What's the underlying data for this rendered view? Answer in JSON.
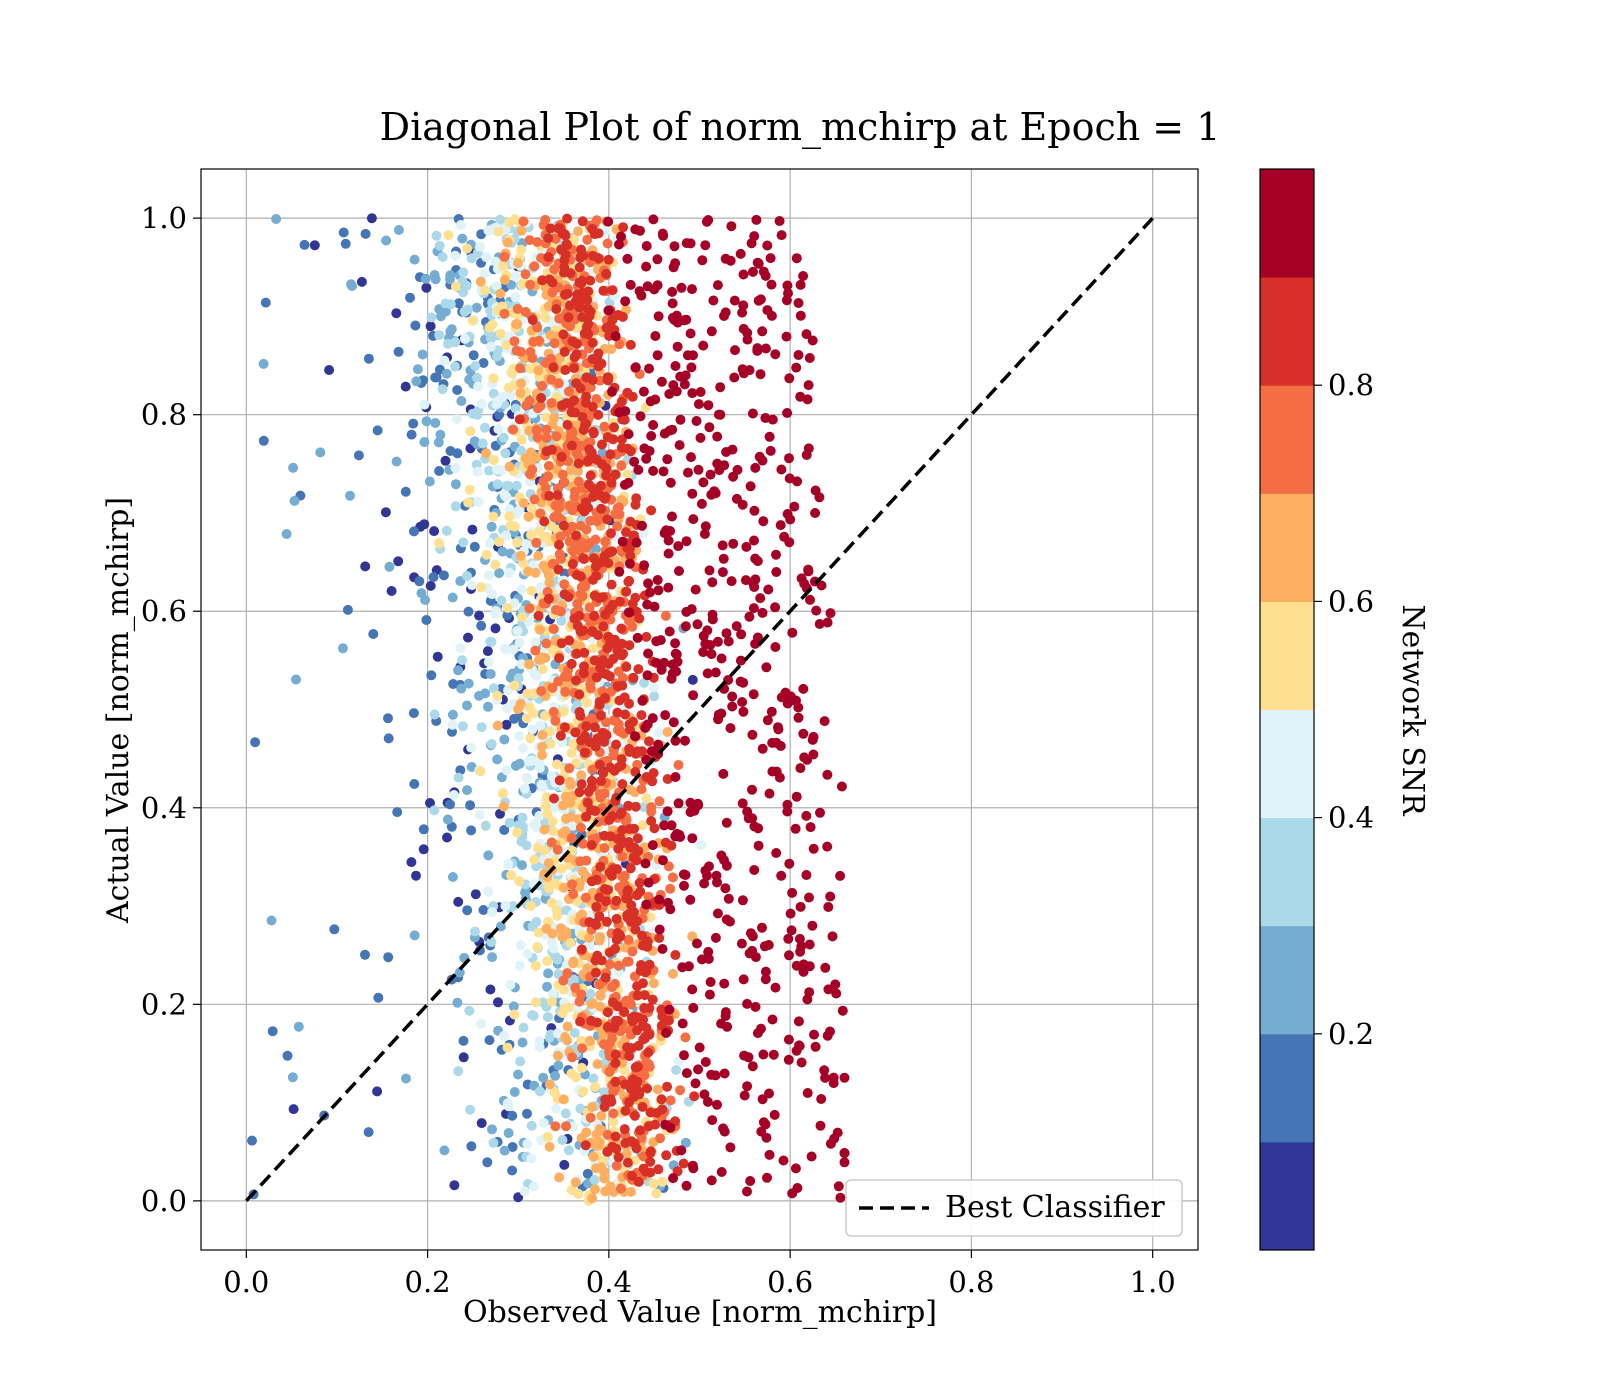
{
  "chart_data": {
    "type": "scatter",
    "title": "Diagonal Plot of norm_mchirp at Epoch = 1",
    "xlabel": "Observed Value [norm_mchirp]",
    "ylabel": "Actual Value [norm_mchirp]",
    "xlim": [
      -0.05,
      1.05
    ],
    "ylim": [
      -0.05,
      1.05
    ],
    "xticks": [
      "0.0",
      "0.2",
      "0.4",
      "0.6",
      "0.8",
      "1.0"
    ],
    "yticks": [
      "0.0",
      "0.2",
      "0.4",
      "0.6",
      "0.8",
      "1.0"
    ],
    "xtick_values": [
      0.0,
      0.2,
      0.4,
      0.6,
      0.8,
      1.0
    ],
    "ytick_values": [
      0.0,
      0.2,
      0.4,
      0.6,
      0.8,
      1.0
    ],
    "grid": true,
    "legend": {
      "position": "lower-right",
      "entries": [
        {
          "label": "Best Classifier",
          "style": "dashed",
          "color": "#000000"
        }
      ]
    },
    "reference_line": {
      "name": "Best Classifier",
      "x": [
        0.0,
        1.0
      ],
      "y": [
        0.0,
        1.0
      ]
    },
    "colorbar": {
      "label": "Network SNR",
      "range": [
        0.0,
        1.0
      ],
      "tick_values": [
        0.2,
        0.4,
        0.6,
        0.8
      ],
      "tick_labels": [
        "0.2",
        "0.4",
        "0.6",
        "0.8"
      ],
      "bins": 10,
      "colors": [
        "#313695",
        "#4575b4",
        "#74add1",
        "#abd9e9",
        "#e0f3f8",
        "#fee090",
        "#fdae61",
        "#f46d43",
        "#d73027",
        "#a50026"
      ]
    },
    "scatter_description": {
      "color_variable": "Network SNR",
      "observed_range": [
        0.0,
        0.66
      ],
      "actual_range": [
        0.0,
        1.0
      ],
      "trend": "high SNR points cluster at observed 0.42-0.62; low SNR points spread at observed 0.0-0.35"
    }
  }
}
